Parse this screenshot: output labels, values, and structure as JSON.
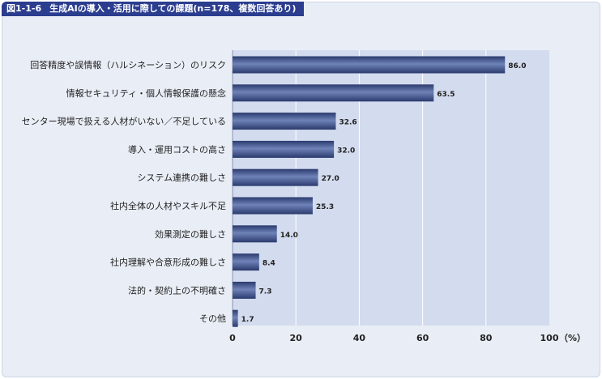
{
  "title": {
    "figure": "図1-1-6",
    "text": "生成AIの導入・活用に際しての課題(n=178、複数回答あり)"
  },
  "chart_data": {
    "type": "bar",
    "orientation": "horizontal",
    "categories": [
      "回答精度や誤情報（ハルシネーション）のリスク",
      "情報セキュリティ・個人情報保護の懸念",
      "センター現場で扱える人材がいない／不足している",
      "導入・運用コストの高さ",
      "システム連携の難しさ",
      "社内全体の人材やスキル不足",
      "効果測定の難しさ",
      "社内理解や合意形成の難しさ",
      "法的・契約上の不明確さ",
      "その他"
    ],
    "values": [
      86.0,
      63.5,
      32.6,
      32.0,
      27.0,
      25.3,
      14.0,
      8.4,
      7.3,
      1.7
    ],
    "value_labels": [
      "86.0",
      "63.5",
      "32.6",
      "32.0",
      "27.0",
      "25.3",
      "14.0",
      "8.4",
      "7.3",
      "1.7"
    ],
    "xlim": [
      0,
      100
    ],
    "ticks": [
      0,
      20,
      40,
      60,
      80,
      100
    ],
    "tick_labels": [
      "0",
      "20",
      "40",
      "60",
      "80",
      "100"
    ],
    "unit": "（%）",
    "grid": true,
    "colors": {
      "plot_background": "#d3dbee",
      "bar_dark": "#2a3a6e",
      "bar_light": "#6f83b8",
      "gridline": "#ffffff",
      "title_bar": "#2b3d8f"
    }
  }
}
